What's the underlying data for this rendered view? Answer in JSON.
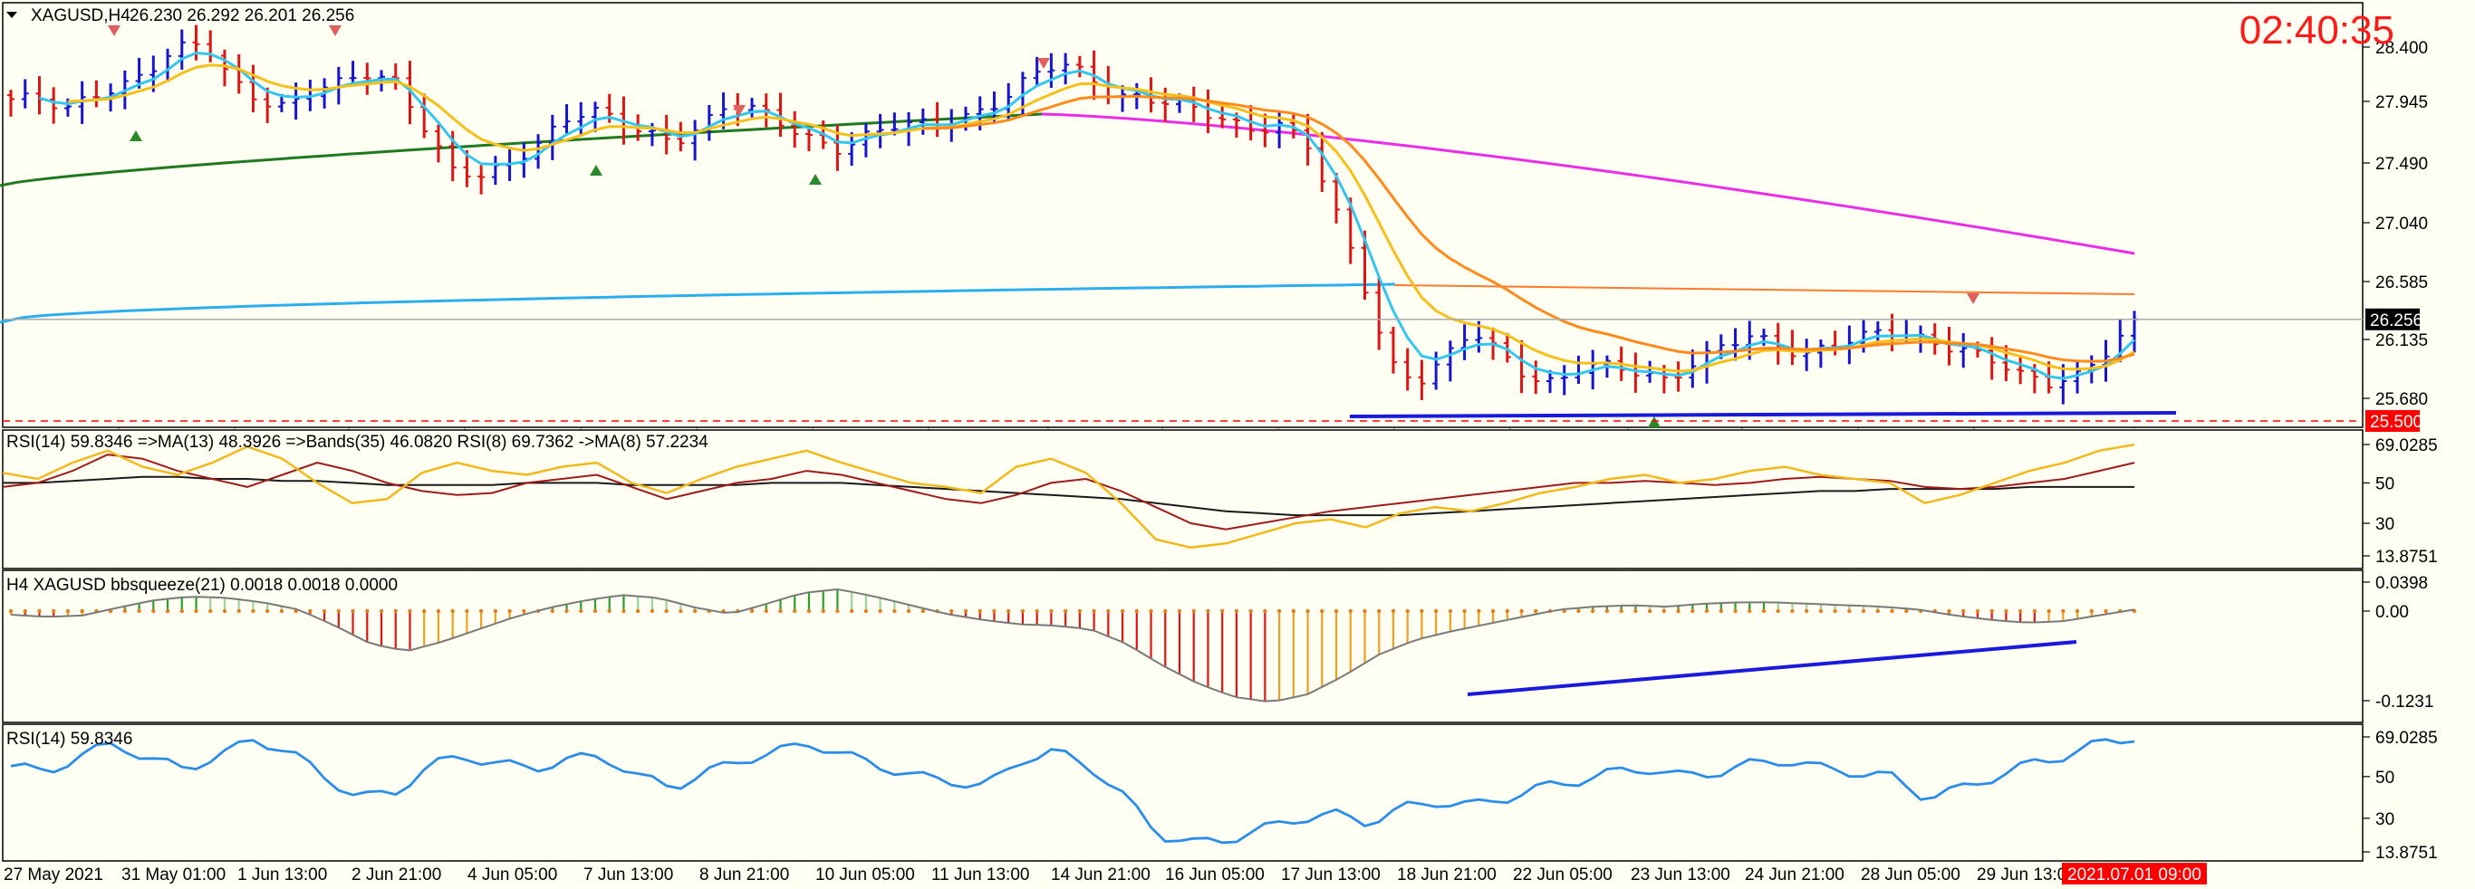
{
  "header": {
    "symbol": "XAGUSD,H4",
    "ohlc": "26.230 26.292 26.201 26.256",
    "clock": "02:40:35"
  },
  "colors": {
    "background": "#fffff3",
    "grid": "#9a9a9a",
    "bull": "#1414d2",
    "bear": "#e01414",
    "ema_fast": "#33c6ee",
    "ema_mid": "#f6c01a",
    "ema_slow": "#ff8a1c",
    "ma_dark_green": "#1f7a1f",
    "ma_magenta": "#ea2ee8",
    "ma_light_blue": "#2aaef0",
    "ma_orange_long": "#ff7a2a",
    "trend_line": "#1a1adc",
    "rsi_line": "#2a8ee8",
    "price_tag": "#000000",
    "level_tag": "#ff0000",
    "clock": "#ff1a1a"
  },
  "main_axis": {
    "ticks": [
      "28.400",
      "27.945",
      "27.490",
      "27.040",
      "26.585",
      "26.135",
      "25.680"
    ],
    "current_price": "26.256",
    "level_price": "25.500"
  },
  "rsi_panel": {
    "label": "RSI(14) 59.8346  =>MA(13) 48.3926  =>Bands(35) 46.0820  RSI(8) 69.7362  ->MA(8) 57.2234",
    "ticks": [
      "69.0285",
      "50",
      "30",
      "13.8751"
    ]
  },
  "squeeze_panel": {
    "label": "H4 XAGUSD bbsqueeze(21) 0.0018 0.0018 0.0000",
    "ticks": [
      "0.0398",
      "0.00",
      "-0.1231"
    ]
  },
  "rsi2_panel": {
    "label": "RSI(14) 59.8346",
    "ticks": [
      "69.0285",
      "50",
      "30",
      "13.8751"
    ]
  },
  "time_axis": {
    "labels": [
      "27 May 2021",
      "31 May 01:00",
      "1 Jun 13:00",
      "2 Jun 21:00",
      "4 Jun 05:00",
      "7 Jun 13:00",
      "8 Jun 21:00",
      "10 Jun 05:00",
      "11 Jun 13:00",
      "14 Jun 21:00",
      "16 Jun 05:00",
      "17 Jun 13:00",
      "18 Jun 21:00",
      "22 Jun 05:00",
      "23 Jun 13:00",
      "24 Jun 21:00",
      "28 Jun 05:00",
      "29 Jun 13:00"
    ],
    "current_time": "2021.07.01 09:00"
  },
  "chart_data": {
    "type": "line",
    "title": "XAGUSD,H4",
    "ylim": [
      25.45,
      28.62
    ],
    "grid": true,
    "anchor_closes": [
      [
        27.9,
        27.88,
        27.8,
        27.95,
        28.02,
        28.12,
        28.25,
        28.3,
        28.05,
        27.92,
        27.85,
        27.95,
        28.0,
        28.1,
        28.05,
        27.7,
        27.35,
        27.3,
        27.4,
        27.58,
        27.75,
        27.82,
        27.7,
        27.65,
        27.6,
        27.72
      ],
      [
        27.85,
        27.8,
        27.7,
        27.62,
        27.55,
        27.62,
        27.68,
        27.7,
        27.75,
        27.82,
        27.9,
        28.05,
        28.15,
        28.1,
        27.95,
        27.92,
        27.85,
        27.8,
        27.75,
        27.7,
        27.72,
        27.55,
        27.05,
        26.55,
        25.95,
        25.8
      ],
      [
        25.95,
        26.15,
        26.0,
        25.85,
        25.8,
        25.9,
        25.88,
        25.85,
        25.82,
        25.95,
        26.05,
        26.1,
        26.05,
        26.0,
        26.1,
        26.12,
        26.15,
        26.1,
        26.08,
        26.05,
        25.95,
        25.8,
        25.75,
        25.85,
        26.05,
        26.256
      ]
    ],
    "rsi14": [
      55,
      52,
      60,
      66,
      58,
      54,
      60,
      68,
      62,
      50,
      40,
      42,
      55,
      60,
      56,
      54,
      58,
      60,
      50,
      45,
      52,
      58,
      62,
      66,
      60,
      55,
      50,
      48,
      45,
      58,
      62,
      55,
      40,
      22,
      18,
      20,
      25,
      30,
      32,
      28,
      35,
      38,
      36,
      40,
      45,
      48,
      52,
      54,
      50,
      52,
      56,
      58,
      54,
      52,
      50,
      40,
      44,
      50,
      56,
      60,
      66,
      69
    ],
    "rsi_signal": [
      48,
      50,
      56,
      64,
      62,
      56,
      52,
      48,
      54,
      60,
      56,
      50,
      46,
      44,
      45,
      50,
      52,
      54,
      48,
      42,
      46,
      50,
      52,
      56,
      54,
      50,
      46,
      42,
      40,
      44,
      50,
      52,
      46,
      38,
      30,
      27,
      30,
      33,
      36,
      38,
      40,
      42,
      44,
      46,
      48,
      50,
      50,
      51,
      50,
      49,
      50,
      52,
      53,
      52,
      51,
      48,
      47,
      48,
      50,
      52,
      56,
      60
    ],
    "rsi_bands": [
      50,
      50,
      51,
      52,
      53,
      53,
      52,
      52,
      51,
      51,
      50,
      49,
      49,
      49,
      49,
      50,
      50,
      50,
      49,
      49,
      49,
      49,
      50,
      50,
      50,
      49,
      48,
      47,
      46,
      45,
      44,
      43,
      42,
      40,
      38,
      36,
      35,
      34,
      34,
      34,
      34,
      35,
      36,
      37,
      38,
      39,
      40,
      41,
      42,
      43,
      44,
      45,
      46,
      46,
      47,
      47,
      47,
      47,
      48,
      48,
      48,
      48
    ],
    "squeeze_hist": [
      -0.005,
      -0.008,
      -0.006,
      0.005,
      0.015,
      0.02,
      0.018,
      0.012,
      0.002,
      -0.02,
      -0.045,
      -0.055,
      -0.042,
      -0.025,
      -0.008,
      0.005,
      0.015,
      0.022,
      0.018,
      0.005,
      -0.004,
      0.01,
      0.025,
      0.03,
      0.02,
      0.008,
      -0.004,
      -0.012,
      -0.018,
      -0.02,
      -0.025,
      -0.045,
      -0.075,
      -0.1,
      -0.118,
      -0.125,
      -0.115,
      -0.09,
      -0.06,
      -0.04,
      -0.028,
      -0.018,
      -0.008,
      0.002,
      0.006,
      0.008,
      0.006,
      0.01,
      0.012,
      0.012,
      0.01,
      0.008,
      0.006,
      0.002,
      -0.006,
      -0.012,
      -0.016,
      -0.014,
      -0.006,
      0.002
    ]
  }
}
